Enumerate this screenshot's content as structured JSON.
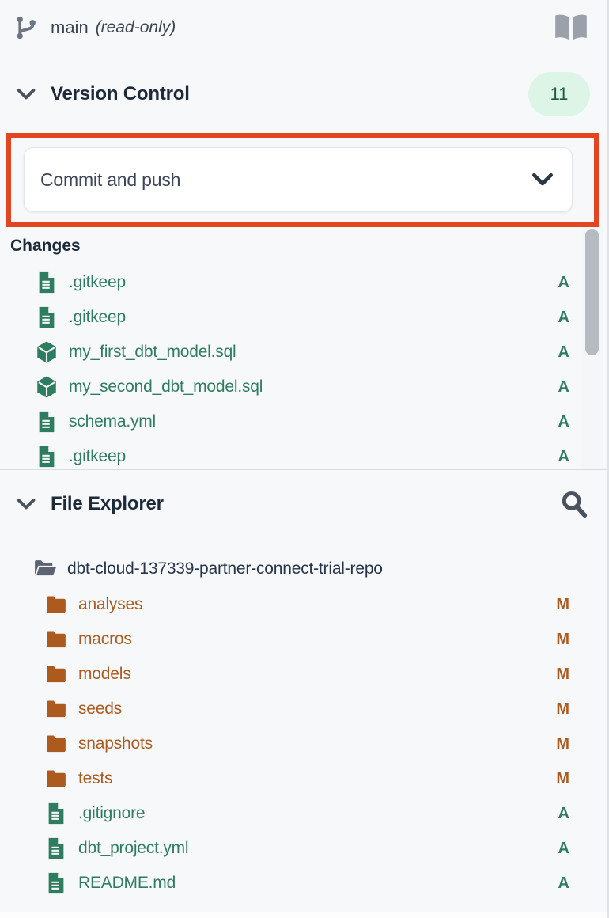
{
  "topbar": {
    "branch_name": "main",
    "branch_mode": "(read-only)"
  },
  "version_control": {
    "title": "Version Control",
    "badge_count": "11",
    "commit_button_label": "Commit and push",
    "changes_label": "Changes",
    "changes": [
      {
        "name": ".gitkeep",
        "status": "A",
        "icon": "file"
      },
      {
        "name": ".gitkeep",
        "status": "A",
        "icon": "file"
      },
      {
        "name": "my_first_dbt_model.sql",
        "status": "A",
        "icon": "model"
      },
      {
        "name": "my_second_dbt_model.sql",
        "status": "A",
        "icon": "model"
      },
      {
        "name": "schema.yml",
        "status": "A",
        "icon": "file"
      },
      {
        "name": ".gitkeep",
        "status": "A",
        "icon": "file"
      }
    ]
  },
  "file_explorer": {
    "title": "File Explorer",
    "root_folder": "dbt-cloud-137339-partner-connect-trial-repo",
    "items": [
      {
        "name": "analyses",
        "type": "folder",
        "status": "M"
      },
      {
        "name": "macros",
        "type": "folder",
        "status": "M"
      },
      {
        "name": "models",
        "type": "folder",
        "status": "M"
      },
      {
        "name": "seeds",
        "type": "folder",
        "status": "M"
      },
      {
        "name": "snapshots",
        "type": "folder",
        "status": "M"
      },
      {
        "name": "tests",
        "type": "folder",
        "status": "M"
      },
      {
        "name": ".gitignore",
        "type": "file",
        "status": "A"
      },
      {
        "name": "dbt_project.yml",
        "type": "file",
        "status": "A"
      },
      {
        "name": "README.md",
        "type": "file",
        "status": "A"
      }
    ]
  },
  "colors": {
    "highlight_red": "#e2451f",
    "added_green": "#2e7d5e",
    "modified_orange": "#ad5a1e",
    "badge_bg": "#dcf5e7",
    "badge_text": "#1d5c40",
    "panel_bg": "#f7f8fa"
  }
}
